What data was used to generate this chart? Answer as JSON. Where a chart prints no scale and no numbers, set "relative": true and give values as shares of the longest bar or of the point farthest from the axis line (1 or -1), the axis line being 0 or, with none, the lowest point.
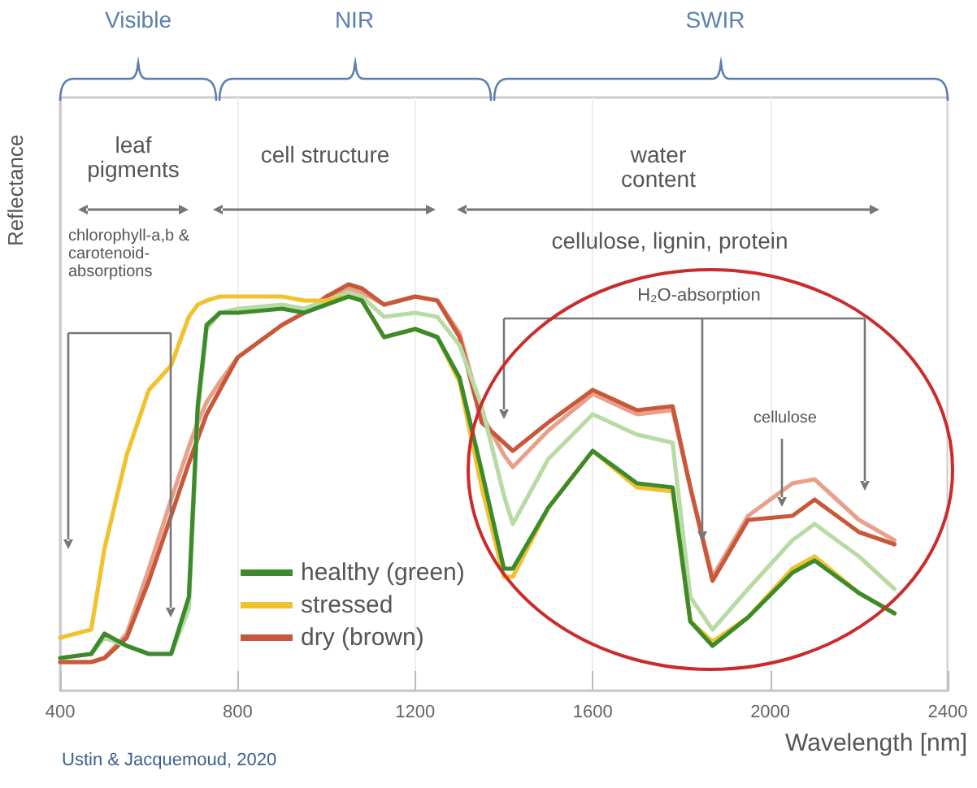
{
  "chart_data": {
    "type": "line",
    "relative": true,
    "xlabel": "Wavelength [nm]",
    "ylabel": "Reflectance",
    "xlim": [
      400,
      2400
    ],
    "xticks": [
      400,
      800,
      1200,
      1600,
      2000,
      2400
    ],
    "grid": "x",
    "legend": "bottom left",
    "marker": "none",
    "line_style": "solid",
    "x": [
      400,
      470,
      500,
      550,
      600,
      650,
      690,
      710,
      730,
      760,
      800,
      900,
      950,
      1000,
      1050,
      1080,
      1130,
      1200,
      1250,
      1300,
      1350,
      1400,
      1420,
      1500,
      1600,
      1700,
      1780,
      1820,
      1870,
      1950,
      2050,
      2100,
      2200,
      2280
    ],
    "annotations": [
      "Visible",
      "NIR",
      "SWIR",
      "leaf pigments",
      "cell structure",
      "water content",
      "chlorophyll-a,b & carotenoid-absorptions",
      "cellulose, lignin, protein",
      "H₂O-absorption",
      "cellulose",
      "Ustin & Jacquemoud, 2020"
    ],
    "series": [
      {
        "color": "#e8a08a",
        "values": [
          0.07,
          0.07,
          0.08,
          0.14,
          0.3,
          0.47,
          0.6,
          0.66,
          0.71,
          0.76,
          0.82,
          0.9,
          0.93,
          0.97,
          0.99,
          0.98,
          0.95,
          0.97,
          0.96,
          0.88,
          0.68,
          0.58,
          0.55,
          0.64,
          0.73,
          0.68,
          0.69,
          0.5,
          0.28,
          0.43,
          0.51,
          0.52,
          0.42,
          0.37
        ]
      },
      {
        "name": "dry (brown)",
        "color": "#c9583a",
        "values": [
          0.07,
          0.07,
          0.08,
          0.13,
          0.27,
          0.43,
          0.56,
          0.62,
          0.68,
          0.74,
          0.82,
          0.9,
          0.93,
          0.97,
          1.0,
          0.99,
          0.95,
          0.97,
          0.96,
          0.87,
          0.66,
          0.61,
          0.59,
          0.66,
          0.74,
          0.69,
          0.7,
          0.5,
          0.27,
          0.42,
          0.43,
          0.47,
          0.39,
          0.36
        ]
      },
      {
        "color": "#b8dba4",
        "values": [
          0.08,
          0.09,
          0.13,
          0.11,
          0.09,
          0.09,
          0.2,
          0.68,
          0.89,
          0.93,
          0.94,
          0.95,
          0.94,
          0.96,
          0.98,
          0.97,
          0.92,
          0.93,
          0.92,
          0.85,
          0.7,
          0.48,
          0.41,
          0.57,
          0.68,
          0.63,
          0.61,
          0.23,
          0.15,
          0.25,
          0.37,
          0.41,
          0.33,
          0.25
        ]
      },
      {
        "name": "stressed",
        "color": "#f2c12e",
        "values": [
          0.13,
          0.15,
          0.35,
          0.58,
          0.74,
          0.8,
          0.92,
          0.95,
          0.96,
          0.97,
          0.97,
          0.97,
          0.96,
          0.96,
          0.97,
          0.96,
          0.87,
          0.89,
          0.87,
          0.76,
          0.5,
          0.28,
          0.28,
          0.45,
          0.59,
          0.5,
          0.49,
          0.17,
          0.12,
          0.18,
          0.3,
          0.33,
          0.24,
          0.19
        ]
      },
      {
        "name": "healthy (green)",
        "color": "#3d8a2c",
        "values": [
          0.08,
          0.09,
          0.14,
          0.11,
          0.09,
          0.09,
          0.23,
          0.7,
          0.9,
          0.93,
          0.93,
          0.94,
          0.93,
          0.95,
          0.97,
          0.96,
          0.87,
          0.89,
          0.87,
          0.77,
          0.54,
          0.3,
          0.3,
          0.45,
          0.59,
          0.51,
          0.5,
          0.17,
          0.11,
          0.18,
          0.29,
          0.32,
          0.24,
          0.19
        ]
      }
    ]
  }
}
